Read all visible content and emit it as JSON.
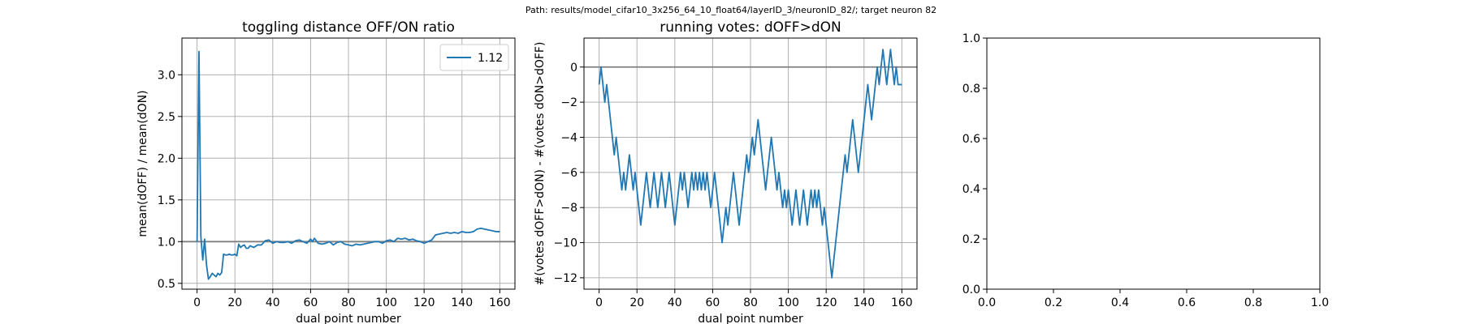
{
  "suptitle": "Path: results/model_cifar10_3x256_64_10_float64/layerID_3/neuronID_82/; target neuron 82",
  "colors": {
    "series": "#1f77b4",
    "refline": "#7f7f7f",
    "grid": "#b0b0b0"
  },
  "chart_data": [
    {
      "type": "line",
      "title": "toggling distance OFF/ON ratio",
      "xlabel": "dual point number",
      "ylabel": "mean(dOFF) / mean(dON)",
      "xlim": [
        -8,
        168
      ],
      "ylim": [
        0.43,
        3.44
      ],
      "xticks": [
        0,
        20,
        40,
        60,
        80,
        100,
        120,
        140,
        160
      ],
      "yticks": [
        0.5,
        1.0,
        1.5,
        2.0,
        2.5,
        3.0
      ],
      "ytick_labels": [
        "0.5",
        "1.0",
        "1.5",
        "2.0",
        "2.5",
        "3.0"
      ],
      "grid": true,
      "hline": 1.0,
      "legend": {
        "position": "top-right",
        "entries": [
          "1.12"
        ]
      },
      "series": [
        {
          "name": "1.12",
          "x": [
            0,
            1,
            2,
            3,
            4,
            5,
            6,
            7,
            8,
            9,
            10,
            11,
            12,
            13,
            14,
            15,
            16,
            17,
            18,
            19,
            20,
            21,
            22,
            23,
            24,
            25,
            26,
            27,
            28,
            30,
            32,
            34,
            36,
            38,
            40,
            42,
            44,
            46,
            48,
            50,
            52,
            54,
            56,
            58,
            60,
            61,
            62,
            64,
            66,
            68,
            70,
            72,
            74,
            76,
            78,
            80,
            82,
            84,
            86,
            88,
            90,
            92,
            94,
            96,
            98,
            100,
            102,
            104,
            106,
            108,
            110,
            112,
            114,
            116,
            118,
            120,
            122,
            124,
            126,
            128,
            130,
            132,
            134,
            136,
            138,
            140,
            142,
            144,
            146,
            148,
            150,
            152,
            154,
            156,
            158,
            160
          ],
          "y": [
            1.0,
            3.28,
            1.06,
            0.78,
            1.03,
            0.72,
            0.55,
            0.58,
            0.62,
            0.6,
            0.58,
            0.62,
            0.6,
            0.63,
            0.85,
            0.84,
            0.84,
            0.85,
            0.84,
            0.84,
            0.85,
            0.83,
            0.97,
            0.93,
            0.95,
            0.96,
            0.92,
            0.92,
            0.95,
            0.93,
            0.96,
            0.96,
            1.01,
            1.02,
            0.98,
            1.0,
            0.99,
            0.99,
            1.0,
            0.98,
            1.01,
            1.02,
            1.0,
            0.98,
            1.03,
            1.0,
            1.04,
            0.98,
            0.97,
            0.98,
            1.0,
            0.96,
            0.99,
            1.0,
            0.97,
            0.96,
            0.95,
            0.97,
            0.96,
            0.97,
            0.98,
            0.99,
            1.0,
            1.0,
            0.98,
            1.01,
            1.02,
            1.0,
            1.04,
            1.03,
            1.04,
            1.02,
            1.03,
            1.01,
            1.0,
            0.98,
            1.0,
            1.02,
            1.08,
            1.09,
            1.1,
            1.11,
            1.1,
            1.11,
            1.1,
            1.12,
            1.11,
            1.11,
            1.12,
            1.15,
            1.16,
            1.15,
            1.14,
            1.13,
            1.12,
            1.12
          ]
        }
      ]
    },
    {
      "type": "line",
      "title": "running votes: dOFF>dON",
      "xlabel": "dual point number",
      "ylabel": "#(votes dOFF>dON) - #(votes dON>dOFF)",
      "xlim": [
        -8,
        168
      ],
      "ylim": [
        -12.65,
        1.65
      ],
      "xticks": [
        0,
        20,
        40,
        60,
        80,
        100,
        120,
        140,
        160
      ],
      "yticks": [
        0,
        -2,
        -4,
        -6,
        -8,
        -10,
        -12
      ],
      "ytick_labels": [
        "0",
        "−2",
        "−4",
        "−6",
        "−8",
        "−10",
        "−12"
      ],
      "grid": true,
      "hline": 0,
      "series": [
        {
          "name": "",
          "x": [
            0,
            1,
            2,
            3,
            4,
            5,
            6,
            7,
            8,
            9,
            10,
            11,
            12,
            13,
            14,
            15,
            16,
            17,
            18,
            19,
            20,
            21,
            22,
            23,
            24,
            25,
            26,
            27,
            28,
            29,
            30,
            31,
            32,
            33,
            34,
            35,
            36,
            37,
            38,
            39,
            40,
            41,
            42,
            43,
            44,
            45,
            46,
            47,
            48,
            49,
            50,
            51,
            52,
            53,
            54,
            55,
            56,
            57,
            58,
            59,
            60,
            61,
            62,
            63,
            64,
            65,
            66,
            67,
            68,
            69,
            70,
            71,
            72,
            73,
            74,
            75,
            76,
            77,
            78,
            79,
            80,
            81,
            82,
            83,
            84,
            85,
            86,
            87,
            88,
            89,
            90,
            91,
            92,
            93,
            94,
            95,
            96,
            97,
            98,
            99,
            100,
            101,
            102,
            103,
            104,
            105,
            106,
            107,
            108,
            109,
            110,
            111,
            112,
            113,
            114,
            115,
            116,
            117,
            118,
            119,
            120,
            121,
            122,
            123,
            124,
            125,
            126,
            127,
            128,
            129,
            130,
            131,
            132,
            133,
            134,
            135,
            136,
            137,
            138,
            139,
            140,
            141,
            142,
            143,
            144,
            145,
            146,
            147,
            148,
            149,
            150,
            151,
            152,
            153,
            154,
            155,
            156,
            157,
            158,
            159,
            160
          ],
          "y": [
            -1,
            0,
            -1,
            -2,
            -1,
            -2,
            -3,
            -4,
            -5,
            -4,
            -5,
            -6,
            -7,
            -6,
            -7,
            -6,
            -5,
            -6,
            -7,
            -6,
            -7,
            -8,
            -9,
            -8,
            -7,
            -6,
            -7,
            -8,
            -7,
            -6,
            -7,
            -8,
            -7,
            -6,
            -7,
            -8,
            -7,
            -6,
            -7,
            -8,
            -9,
            -8,
            -7,
            -6,
            -7,
            -6,
            -7,
            -8,
            -7,
            -6,
            -7,
            -6,
            -7,
            -6,
            -7,
            -6,
            -7,
            -6,
            -7,
            -8,
            -7,
            -6,
            -7,
            -8,
            -9,
            -10,
            -9,
            -8,
            -9,
            -8,
            -7,
            -6,
            -7,
            -8,
            -9,
            -8,
            -7,
            -6,
            -5,
            -6,
            -5,
            -4,
            -5,
            -4,
            -3,
            -4,
            -5,
            -6,
            -7,
            -6,
            -5,
            -4,
            -5,
            -6,
            -7,
            -6,
            -7,
            -8,
            -7,
            -8,
            -7,
            -8,
            -9,
            -8,
            -7,
            -8,
            -9,
            -8,
            -7,
            -8,
            -9,
            -8,
            -7,
            -8,
            -7,
            -8,
            -7,
            -8,
            -9,
            -8,
            -9,
            -10,
            -11,
            -12,
            -11,
            -10,
            -9,
            -8,
            -7,
            -6,
            -5,
            -6,
            -5,
            -4,
            -3,
            -4,
            -5,
            -6,
            -5,
            -4,
            -3,
            -2,
            -1,
            -2,
            -3,
            -2,
            -1,
            0,
            -1,
            0,
            1,
            0,
            -1,
            0,
            1,
            0,
            -1,
            0,
            -1,
            -1,
            -1
          ]
        }
      ]
    },
    {
      "type": "line",
      "title": "",
      "xlabel": "",
      "ylabel": "",
      "xlim": [
        0,
        1
      ],
      "ylim": [
        0,
        1
      ],
      "xticks": [
        0.0,
        0.2,
        0.4,
        0.6,
        0.8,
        1.0
      ],
      "xtick_labels": [
        "0.0",
        "0.2",
        "0.4",
        "0.6",
        "0.8",
        "1.0"
      ],
      "yticks": [
        0.0,
        0.2,
        0.4,
        0.6,
        0.8,
        1.0
      ],
      "ytick_labels": [
        "0.0",
        "0.2",
        "0.4",
        "0.6",
        "0.8",
        "1.0"
      ],
      "grid": false,
      "series": []
    }
  ]
}
